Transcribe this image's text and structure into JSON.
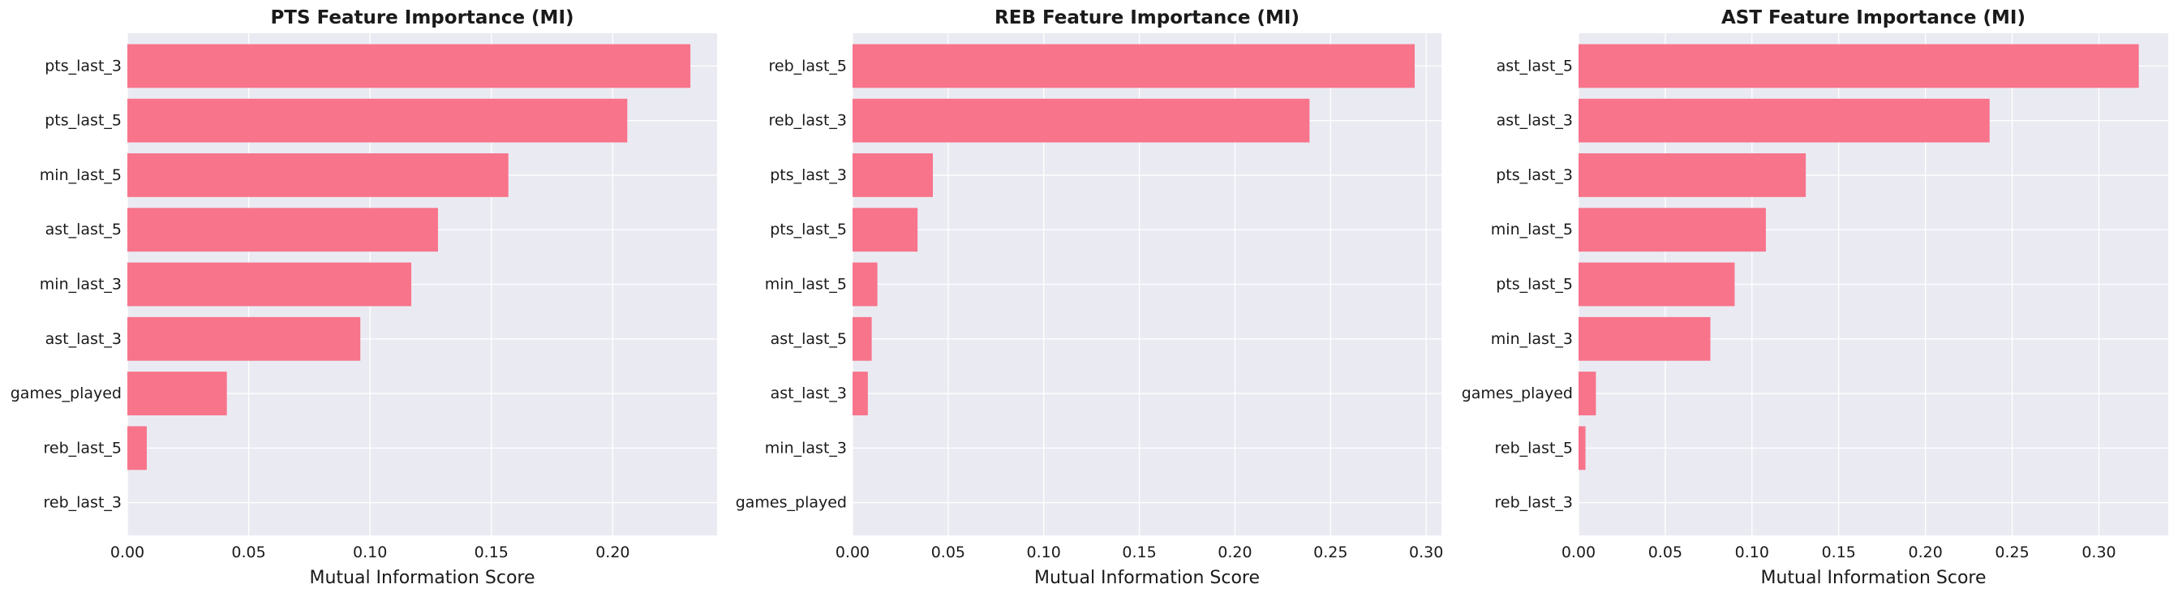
{
  "chart_data": [
    {
      "type": "bar",
      "orientation": "horizontal",
      "title": "PTS Feature Importance (MI)",
      "xlabel": "Mutual Information Score",
      "ylabel": "",
      "categories": [
        "pts_last_3",
        "pts_last_5",
        "min_last_5",
        "ast_last_5",
        "min_last_3",
        "ast_last_3",
        "games_played",
        "reb_last_5",
        "reb_last_3"
      ],
      "values": [
        0.232,
        0.206,
        0.157,
        0.128,
        0.117,
        0.096,
        0.041,
        0.008,
        0.0
      ],
      "xlim": [
        0,
        0.243
      ],
      "xticks": [
        0.0,
        0.05,
        0.1,
        0.15,
        0.2
      ],
      "xtick_labels": [
        "0.00",
        "0.05",
        "0.10",
        "0.15",
        "0.20"
      ],
      "grid": true,
      "bar_color": "#f7748b"
    },
    {
      "type": "bar",
      "orientation": "horizontal",
      "title": "REB Feature Importance (MI)",
      "xlabel": "Mutual Information Score",
      "ylabel": "",
      "categories": [
        "reb_last_5",
        "reb_last_3",
        "pts_last_3",
        "pts_last_5",
        "min_last_5",
        "ast_last_5",
        "ast_last_3",
        "min_last_3",
        "games_played"
      ],
      "values": [
        0.294,
        0.239,
        0.042,
        0.034,
        0.013,
        0.01,
        0.008,
        0.0,
        0.0
      ],
      "xlim": [
        0,
        0.308
      ],
      "xticks": [
        0.0,
        0.05,
        0.1,
        0.15,
        0.2,
        0.25,
        0.3
      ],
      "xtick_labels": [
        "0.00",
        "0.05",
        "0.10",
        "0.15",
        "0.20",
        "0.25",
        "0.30"
      ],
      "grid": true,
      "bar_color": "#f7748b"
    },
    {
      "type": "bar",
      "orientation": "horizontal",
      "title": "AST Feature Importance (MI)",
      "xlabel": "Mutual Information Score",
      "ylabel": "",
      "categories": [
        "ast_last_5",
        "ast_last_3",
        "pts_last_3",
        "min_last_5",
        "pts_last_5",
        "min_last_3",
        "games_played",
        "reb_last_5",
        "reb_last_3"
      ],
      "values": [
        0.323,
        0.237,
        0.131,
        0.108,
        0.09,
        0.076,
        0.01,
        0.004,
        0.0
      ],
      "xlim": [
        0,
        0.34
      ],
      "xticks": [
        0.0,
        0.05,
        0.1,
        0.15,
        0.2,
        0.25,
        0.3
      ],
      "xtick_labels": [
        "0.00",
        "0.05",
        "0.10",
        "0.15",
        "0.20",
        "0.25",
        "0.30"
      ],
      "grid": true,
      "bar_color": "#f7748b"
    }
  ],
  "style": {
    "plot_background": "#eaeaf2",
    "grid_color": "#ffffff",
    "text_color": "#1a1a1a"
  }
}
